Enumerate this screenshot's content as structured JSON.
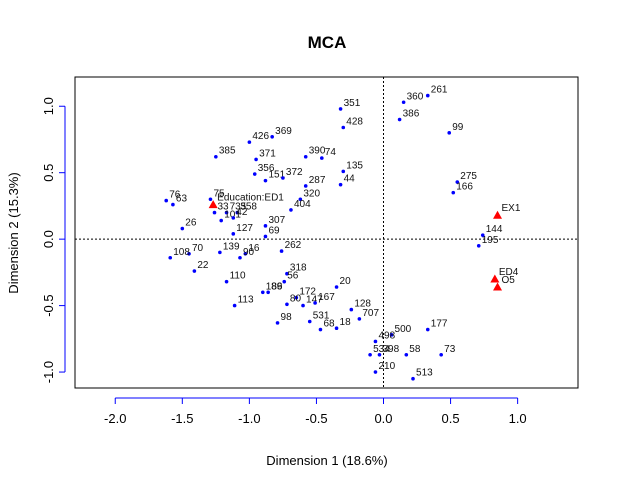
{
  "chart_data": {
    "type": "scatter",
    "title": "MCA",
    "xlabel": "Dimension 1 (18.6%)",
    "ylabel": "Dimension 2 (15.3%)",
    "xlim": [
      -2.3,
      1.45
    ],
    "ylim": [
      -1.12,
      1.22
    ],
    "x_ticks": [
      -2.0,
      -1.5,
      -1.0,
      -0.5,
      0.0,
      0.5,
      1.0
    ],
    "x_tick_labels": [
      "-2.0",
      "-1.5",
      "-1.0",
      "-0.5",
      "0.0",
      "0.5",
      "1.0"
    ],
    "y_ticks": [
      -1.0,
      -0.5,
      0.0,
      0.5,
      1.0
    ],
    "y_tick_labels": [
      "-1.0",
      "-0.5",
      "0.0",
      "0.5",
      "1.0"
    ],
    "grid": false,
    "reference_lines": {
      "x": 0,
      "y": 0,
      "style": "dotted"
    },
    "colors": {
      "individuals": "#0000ff",
      "categories": "#ff0000",
      "axis": "#0000ff",
      "frame": "#000000"
    },
    "individuals": [
      {
        "label": "261",
        "x": 0.33,
        "y": 1.08
      },
      {
        "label": "360",
        "x": 0.15,
        "y": 1.03
      },
      {
        "label": "351",
        "x": -0.32,
        "y": 0.98
      },
      {
        "label": "386",
        "x": 0.12,
        "y": 0.9
      },
      {
        "label": "428",
        "x": -0.3,
        "y": 0.84
      },
      {
        "label": "369",
        "x": -0.83,
        "y": 0.77
      },
      {
        "label": "426",
        "x": -1.0,
        "y": 0.73
      },
      {
        "label": "385",
        "x": -1.25,
        "y": 0.62
      },
      {
        "label": "371",
        "x": -0.95,
        "y": 0.6
      },
      {
        "label": "390",
        "x": -0.58,
        "y": 0.62
      },
      {
        "label": "74",
        "x": -0.46,
        "y": 0.61
      },
      {
        "label": "356",
        "x": -0.96,
        "y": 0.49
      },
      {
        "label": "151",
        "x": -0.88,
        "y": 0.44
      },
      {
        "label": "372",
        "x": -0.75,
        "y": 0.46
      },
      {
        "label": "135",
        "x": -0.3,
        "y": 0.51
      },
      {
        "label": "287",
        "x": -0.58,
        "y": 0.4
      },
      {
        "label": "44",
        "x": -0.32,
        "y": 0.41
      },
      {
        "label": "275",
        "x": 0.55,
        "y": 0.43
      },
      {
        "label": "76",
        "x": -1.62,
        "y": 0.29
      },
      {
        "label": "63",
        "x": -1.57,
        "y": 0.26
      },
      {
        "label": "75",
        "x": -1.29,
        "y": 0.3
      },
      {
        "label": "320",
        "x": -0.62,
        "y": 0.3
      },
      {
        "label": "358",
        "x": -1.09,
        "y": 0.2
      },
      {
        "label": "33",
        "x": -1.26,
        "y": 0.2
      },
      {
        "label": "735",
        "x": -1.17,
        "y": 0.2
      },
      {
        "label": "404",
        "x": -0.69,
        "y": 0.22
      },
      {
        "label": "101",
        "x": -1.21,
        "y": 0.14
      },
      {
        "label": "42",
        "x": -1.12,
        "y": 0.16
      },
      {
        "label": "26",
        "x": -1.5,
        "y": 0.08
      },
      {
        "label": "127",
        "x": -1.12,
        "y": 0.04
      },
      {
        "label": "307",
        "x": -0.88,
        "y": 0.1
      },
      {
        "label": "69",
        "x": -0.88,
        "y": 0.02
      },
      {
        "label": "70",
        "x": -1.45,
        "y": -0.11
      },
      {
        "label": "108",
        "x": -1.59,
        "y": -0.14
      },
      {
        "label": "139",
        "x": -1.22,
        "y": -0.1
      },
      {
        "label": "16",
        "x": -1.03,
        "y": -0.11
      },
      {
        "label": "90",
        "x": -1.07,
        "y": -0.14
      },
      {
        "label": "22",
        "x": -1.41,
        "y": -0.24
      },
      {
        "label": "262",
        "x": -0.76,
        "y": -0.09
      },
      {
        "label": "110",
        "x": -1.17,
        "y": -0.32
      },
      {
        "label": "318",
        "x": -0.72,
        "y": -0.26
      },
      {
        "label": "56",
        "x": -0.74,
        "y": -0.32
      },
      {
        "label": "113",
        "x": -1.11,
        "y": -0.5
      },
      {
        "label": "186",
        "x": -0.9,
        "y": -0.4
      },
      {
        "label": "89",
        "x": -0.86,
        "y": -0.4
      },
      {
        "label": "172",
        "x": -0.65,
        "y": -0.44
      },
      {
        "label": "80",
        "x": -0.72,
        "y": -0.49
      },
      {
        "label": "147",
        "x": -0.6,
        "y": -0.5
      },
      {
        "label": "167",
        "x": -0.51,
        "y": -0.48
      },
      {
        "label": "98",
        "x": -0.79,
        "y": -0.63
      },
      {
        "label": "531",
        "x": -0.55,
        "y": -0.62
      },
      {
        "label": "68",
        "x": -0.47,
        "y": -0.68
      },
      {
        "label": "20",
        "x": -0.35,
        "y": -0.36
      },
      {
        "label": "18",
        "x": -0.35,
        "y": -0.67
      },
      {
        "label": "128",
        "x": -0.24,
        "y": -0.53
      },
      {
        "label": "707",
        "x": -0.18,
        "y": -0.6
      },
      {
        "label": "500",
        "x": 0.06,
        "y": -0.72
      },
      {
        "label": "498",
        "x": -0.06,
        "y": -0.77
      },
      {
        "label": "534",
        "x": -0.1,
        "y": -0.87
      },
      {
        "label": "398",
        "x": -0.03,
        "y": -0.87
      },
      {
        "label": "210",
        "x": -0.06,
        "y": -1.0
      },
      {
        "label": "58",
        "x": 0.17,
        "y": -0.87
      },
      {
        "label": "513",
        "x": 0.22,
        "y": -1.05
      },
      {
        "label": "73",
        "x": 0.43,
        "y": -0.87
      },
      {
        "label": "177",
        "x": 0.33,
        "y": -0.68
      },
      {
        "label": "195",
        "x": 0.71,
        "y": -0.05
      },
      {
        "label": "144",
        "x": 0.74,
        "y": 0.03
      },
      {
        "label": "166",
        "x": 0.52,
        "y": 0.35
      },
      {
        "label": "99",
        "x": 0.49,
        "y": 0.8
      }
    ],
    "categories": [
      {
        "label": "Education:ED1",
        "x": -1.27,
        "y": 0.26
      },
      {
        "label": "EX1",
        "x": 0.85,
        "y": 0.18
      },
      {
        "label": "ED4",
        "x": 0.83,
        "y": -0.3
      },
      {
        "label": "O5",
        "x": 0.85,
        "y": -0.36
      }
    ]
  }
}
